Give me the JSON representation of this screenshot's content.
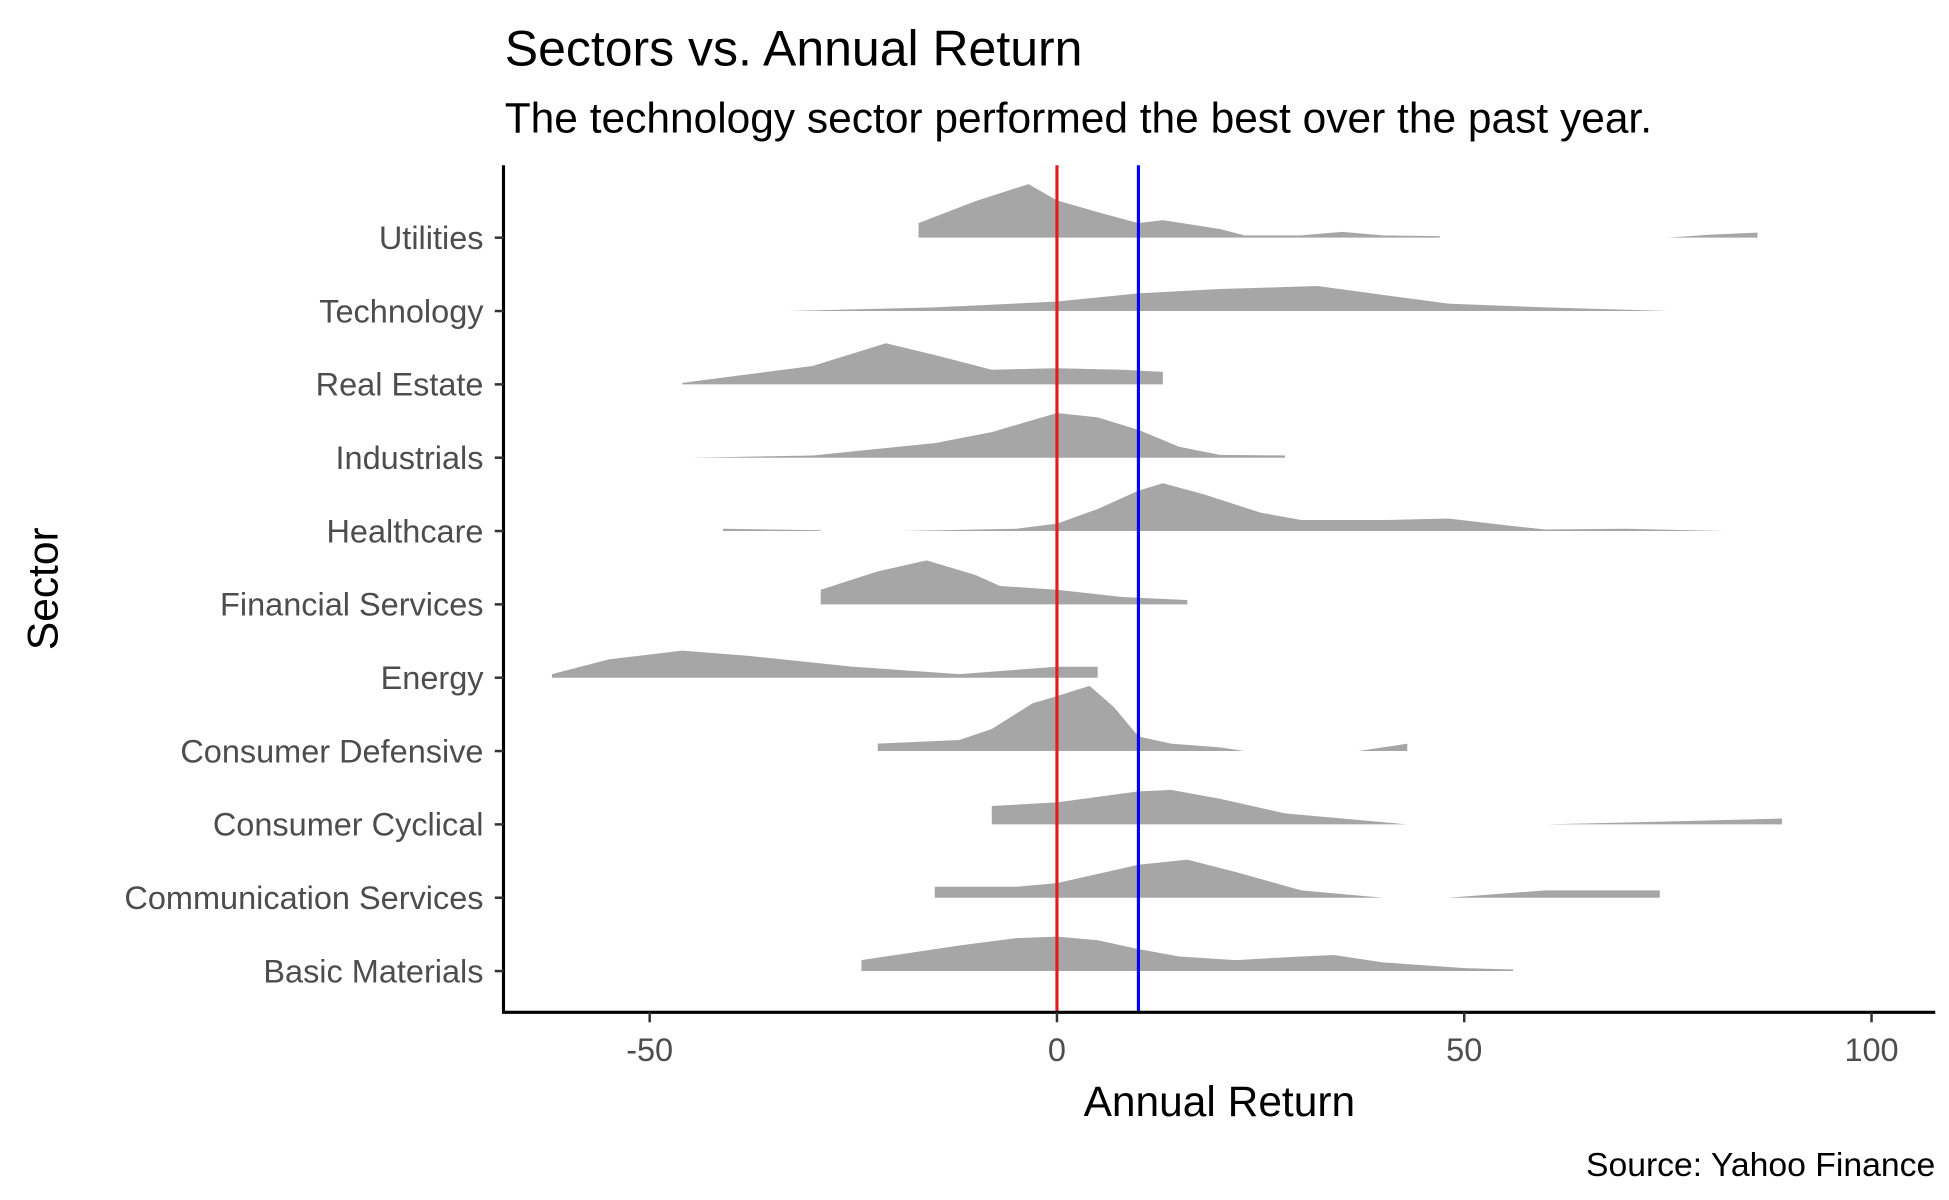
{
  "chart_data": {
    "type": "ridgeline",
    "title": "Sectors vs. Annual Return",
    "subtitle": "The technology sector performed the best over the past year.",
    "xlabel": "Annual Return",
    "ylabel": "Sector",
    "caption": "Source: Yahoo Finance",
    "xlim": [
      -68,
      108
    ],
    "x_ticks": [
      -50,
      0,
      50,
      100
    ],
    "x_tick_labels": [
      "-50",
      "0",
      "50",
      "100"
    ],
    "grid": false,
    "fill_color": "#a6a6a6",
    "reference_lines": [
      {
        "x": 0,
        "color": "#e41a1c"
      },
      {
        "x": 10,
        "color": "#0000ff"
      }
    ],
    "categories": [
      "Basic Materials",
      "Communication Services",
      "Consumer Cyclical",
      "Consumer Defensive",
      "Energy",
      "Financial Services",
      "Healthcare",
      "Industrials",
      "Real Estate",
      "Technology",
      "Utilities"
    ],
    "series": [
      {
        "sector": "Basic Materials",
        "segments": [
          [
            [
              -24,
              0.15
            ],
            [
              -12,
              0.35
            ],
            [
              -5,
              0.45
            ],
            [
              0,
              0.47
            ],
            [
              5,
              0.42
            ],
            [
              10,
              0.3
            ],
            [
              15,
              0.2
            ],
            [
              22,
              0.15
            ],
            [
              30,
              0.2
            ],
            [
              34,
              0.22
            ],
            [
              40,
              0.12
            ],
            [
              50,
              0.04
            ],
            [
              56,
              0.02
            ]
          ]
        ]
      },
      {
        "sector": "Communication Services",
        "segments": [
          [
            [
              -15,
              0.15
            ],
            [
              -5,
              0.15
            ],
            [
              0,
              0.2
            ],
            [
              10,
              0.45
            ],
            [
              16,
              0.52
            ],
            [
              22,
              0.35
            ],
            [
              30,
              0.1
            ],
            [
              40,
              0.0
            ]
          ],
          [
            [
              48,
              0.0
            ],
            [
              60,
              0.1
            ],
            [
              74,
              0.1
            ]
          ]
        ]
      },
      {
        "sector": "Consumer Cyclical",
        "segments": [
          [
            [
              -8,
              0.25
            ],
            [
              0,
              0.3
            ],
            [
              10,
              0.45
            ],
            [
              14,
              0.47
            ],
            [
              20,
              0.35
            ],
            [
              28,
              0.15
            ],
            [
              35,
              0.08
            ],
            [
              43,
              0.0
            ]
          ],
          [
            [
              60,
              0.0
            ],
            [
              75,
              0.04
            ],
            [
              89,
              0.08
            ]
          ]
        ]
      },
      {
        "sector": "Consumer Defensive",
        "segments": [
          [
            [
              -22,
              0.1
            ],
            [
              -12,
              0.15
            ],
            [
              -8,
              0.3
            ],
            [
              -3,
              0.65
            ],
            [
              0,
              0.75
            ],
            [
              4,
              0.89
            ],
            [
              7,
              0.6
            ],
            [
              10,
              0.2
            ],
            [
              14,
              0.1
            ],
            [
              20,
              0.05
            ],
            [
              23,
              0.0
            ]
          ],
          [
            [
              37,
              0.0
            ],
            [
              43,
              0.1
            ]
          ]
        ]
      },
      {
        "sector": "Energy",
        "segments": [
          [
            [
              -62,
              0.05
            ],
            [
              -55,
              0.25
            ],
            [
              -46,
              0.37
            ],
            [
              -38,
              0.3
            ],
            [
              -25,
              0.15
            ],
            [
              -12,
              0.05
            ],
            [
              0,
              0.15
            ],
            [
              5,
              0.15
            ]
          ]
        ]
      },
      {
        "sector": "Financial Services",
        "segments": [
          [
            [
              -29,
              0.2
            ],
            [
              -22,
              0.45
            ],
            [
              -16,
              0.6
            ],
            [
              -10,
              0.4
            ],
            [
              -7,
              0.25
            ],
            [
              0,
              0.2
            ],
            [
              8,
              0.1
            ],
            [
              16,
              0.06
            ]
          ]
        ]
      },
      {
        "sector": "Healthcare",
        "segments": [
          [
            [
              -41,
              0.03
            ],
            [
              -29,
              0.01
            ]
          ],
          [
            [
              -19,
              0.0
            ],
            [
              -5,
              0.03
            ],
            [
              0,
              0.1
            ],
            [
              5,
              0.3
            ],
            [
              10,
              0.55
            ],
            [
              13,
              0.65
            ],
            [
              18,
              0.5
            ],
            [
              25,
              0.25
            ],
            [
              30,
              0.15
            ],
            [
              40,
              0.15
            ],
            [
              48,
              0.17
            ],
            [
              55,
              0.08
            ],
            [
              60,
              0.02
            ],
            [
              70,
              0.03
            ],
            [
              82,
              0.0
            ]
          ]
        ]
      },
      {
        "sector": "Industrials",
        "segments": [
          [
            [
              -45,
              0.0
            ],
            [
              -30,
              0.03
            ],
            [
              -15,
              0.2
            ],
            [
              -8,
              0.35
            ],
            [
              0,
              0.61
            ],
            [
              5,
              0.55
            ],
            [
              10,
              0.38
            ],
            [
              15,
              0.15
            ],
            [
              20,
              0.04
            ],
            [
              28,
              0.03
            ]
          ]
        ]
      },
      {
        "sector": "Real Estate",
        "segments": [
          [
            [
              -46,
              0.02
            ],
            [
              -30,
              0.25
            ],
            [
              -21,
              0.56
            ],
            [
              -15,
              0.4
            ],
            [
              -8,
              0.2
            ],
            [
              0,
              0.22
            ],
            [
              8,
              0.2
            ],
            [
              13,
              0.17
            ]
          ]
        ]
      },
      {
        "sector": "Technology",
        "segments": [
          [
            [
              -33,
              0.0
            ],
            [
              -15,
              0.05
            ],
            [
              0,
              0.13
            ],
            [
              10,
              0.24
            ],
            [
              20,
              0.3
            ],
            [
              32,
              0.34
            ],
            [
              40,
              0.22
            ],
            [
              48,
              0.1
            ],
            [
              60,
              0.05
            ],
            [
              75,
              0.0
            ]
          ]
        ]
      },
      {
        "sector": "Utilities",
        "segments": [
          [
            [
              -17,
              0.2
            ],
            [
              -10,
              0.5
            ],
            [
              -3.5,
              0.73
            ],
            [
              0,
              0.51
            ],
            [
              5,
              0.35
            ],
            [
              10,
              0.2
            ],
            [
              13,
              0.24
            ],
            [
              20,
              0.12
            ],
            [
              23,
              0.03
            ],
            [
              30,
              0.03
            ],
            [
              35,
              0.08
            ],
            [
              40,
              0.03
            ],
            [
              47,
              0.02
            ]
          ],
          [
            [
              75,
              0.0
            ],
            [
              80,
              0.04
            ],
            [
              86,
              0.07
            ]
          ]
        ]
      }
    ]
  }
}
